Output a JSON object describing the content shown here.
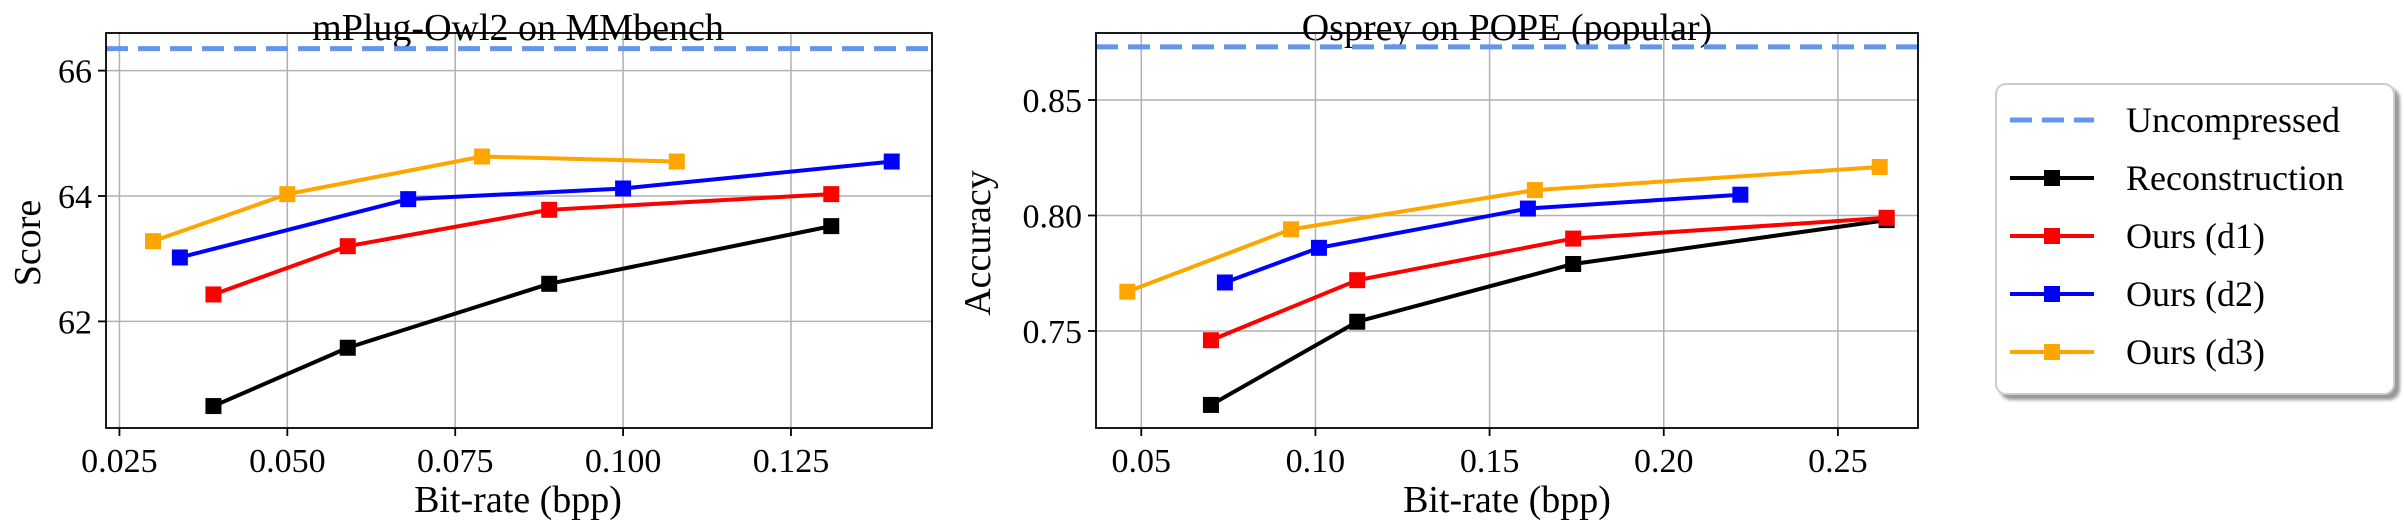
{
  "chart_data": [
    {
      "type": "line",
      "title": "mPlug-Owl2 on MMbench",
      "xlabel": "Bit-rate (bpp)",
      "ylabel": "Score",
      "xlim": [
        0.023,
        0.146
      ],
      "ylim": [
        60.3,
        66.6
      ],
      "xticks": [
        0.025,
        0.05,
        0.075,
        0.1,
        0.125
      ],
      "xtick_labels": [
        "0.025",
        "0.050",
        "0.075",
        "0.100",
        "0.125"
      ],
      "yticks": [
        62,
        64,
        66
      ],
      "ytick_labels": [
        "62",
        "64",
        "66"
      ],
      "grid": true,
      "baseline": {
        "name": "Uncompressed",
        "value": 66.35
      },
      "series": [
        {
          "name": "Reconstruction",
          "x": [
            0.039,
            0.059,
            0.089,
            0.131
          ],
          "y": [
            60.65,
            61.58,
            62.6,
            63.52
          ]
        },
        {
          "name": "Ours (d1)",
          "x": [
            0.039,
            0.059,
            0.089,
            0.131
          ],
          "y": [
            62.43,
            63.2,
            63.78,
            64.03
          ]
        },
        {
          "name": "Ours (d2)",
          "x": [
            0.034,
            0.068,
            0.1,
            0.14
          ],
          "y": [
            63.02,
            63.95,
            64.12,
            64.55
          ]
        },
        {
          "name": "Ours (d3)",
          "x": [
            0.03,
            0.05,
            0.079,
            0.108
          ],
          "y": [
            63.28,
            64.03,
            64.63,
            64.55
          ]
        }
      ]
    },
    {
      "type": "line",
      "title": "Osprey on POPE (popular)",
      "xlabel": "Bit-rate (bpp)",
      "ylabel": "Accuracy",
      "xlim": [
        0.037,
        0.273
      ],
      "ylim": [
        0.708,
        0.879
      ],
      "xticks": [
        0.05,
        0.1,
        0.15,
        0.2,
        0.25
      ],
      "xtick_labels": [
        "0.05",
        "0.10",
        "0.15",
        "0.20",
        "0.25"
      ],
      "yticks": [
        0.75,
        0.8,
        0.85
      ],
      "ytick_labels": [
        "0.75",
        "0.80",
        "0.85"
      ],
      "grid": true,
      "baseline": {
        "name": "Uncompressed",
        "value": 0.873
      },
      "series": [
        {
          "name": "Reconstruction",
          "x": [
            0.07,
            0.112,
            0.174,
            0.264
          ],
          "y": [
            0.718,
            0.754,
            0.779,
            0.798
          ]
        },
        {
          "name": "Ours (d1)",
          "x": [
            0.07,
            0.112,
            0.174,
            0.264
          ],
          "y": [
            0.746,
            0.772,
            0.79,
            0.799
          ]
        },
        {
          "name": "Ours (d2)",
          "x": [
            0.074,
            0.101,
            0.161,
            0.222
          ],
          "y": [
            0.771,
            0.786,
            0.803,
            0.809
          ]
        },
        {
          "name": "Ours (d3)",
          "x": [
            0.046,
            0.093,
            0.163,
            0.262
          ],
          "y": [
            0.767,
            0.794,
            0.811,
            0.821
          ]
        }
      ]
    }
  ],
  "legend": {
    "placement": "right",
    "entries": [
      {
        "name": "Uncompressed",
        "color": "#6495ED",
        "style": "dashed"
      },
      {
        "name": "Reconstruction",
        "color": "#000000",
        "style": "solid-square"
      },
      {
        "name": "Ours (d1)",
        "color": "#FF0000",
        "style": "solid-square"
      },
      {
        "name": "Ours (d2)",
        "color": "#0000FF",
        "style": "solid-square"
      },
      {
        "name": "Ours (d3)",
        "color": "#FFA500",
        "style": "solid-square"
      }
    ]
  },
  "colors": {
    "Uncompressed": "#6495ED",
    "Reconstruction": "#000000",
    "Ours (d1)": "#FF0000",
    "Ours (d2)": "#0000FF",
    "Ours (d3)": "#FFA500"
  }
}
